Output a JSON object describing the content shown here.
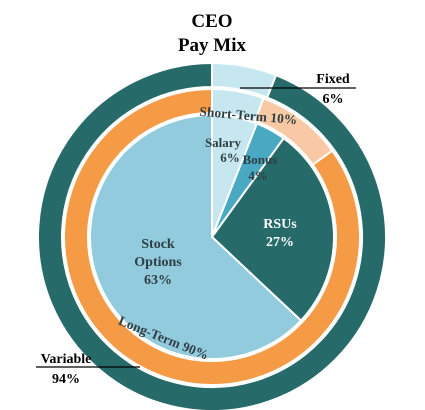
{
  "chart_data": {
    "type": "sunburst",
    "title_line1": "CEO",
    "title_line2": "Pay Mix",
    "outer_ring": [
      {
        "name": "Fixed",
        "value": 6,
        "label": "6%",
        "color": "#c6e7f0"
      },
      {
        "name": "Variable",
        "value": 94,
        "label": "94%",
        "color": "#276a6a"
      }
    ],
    "middle_ring": [
      {
        "name": "",
        "value": 6,
        "label": "",
        "color": "#c6e7f0"
      },
      {
        "name": "Short-Term",
        "value": 10,
        "label": "Short-Term 10%",
        "color": "#f8c9a4"
      },
      {
        "name": "Long-Term",
        "value": 90,
        "label": "Long-Term 90%",
        "color": "#f59a45"
      }
    ],
    "inner_pie": [
      {
        "name": "Salary",
        "value": 6,
        "label": "6%",
        "color": "#c6e7f0"
      },
      {
        "name": "Bonus",
        "value": 4,
        "label": "4%",
        "color": "#4aa9c2"
      },
      {
        "name": "RSUs",
        "value": 27,
        "label": "27%",
        "color": "#276a6a"
      },
      {
        "name": "Stock Options",
        "value": 63,
        "label": "63%",
        "color": "#93cbde"
      }
    ],
    "colors": {
      "border": "#ffffff",
      "leader_line": "#000000"
    }
  }
}
